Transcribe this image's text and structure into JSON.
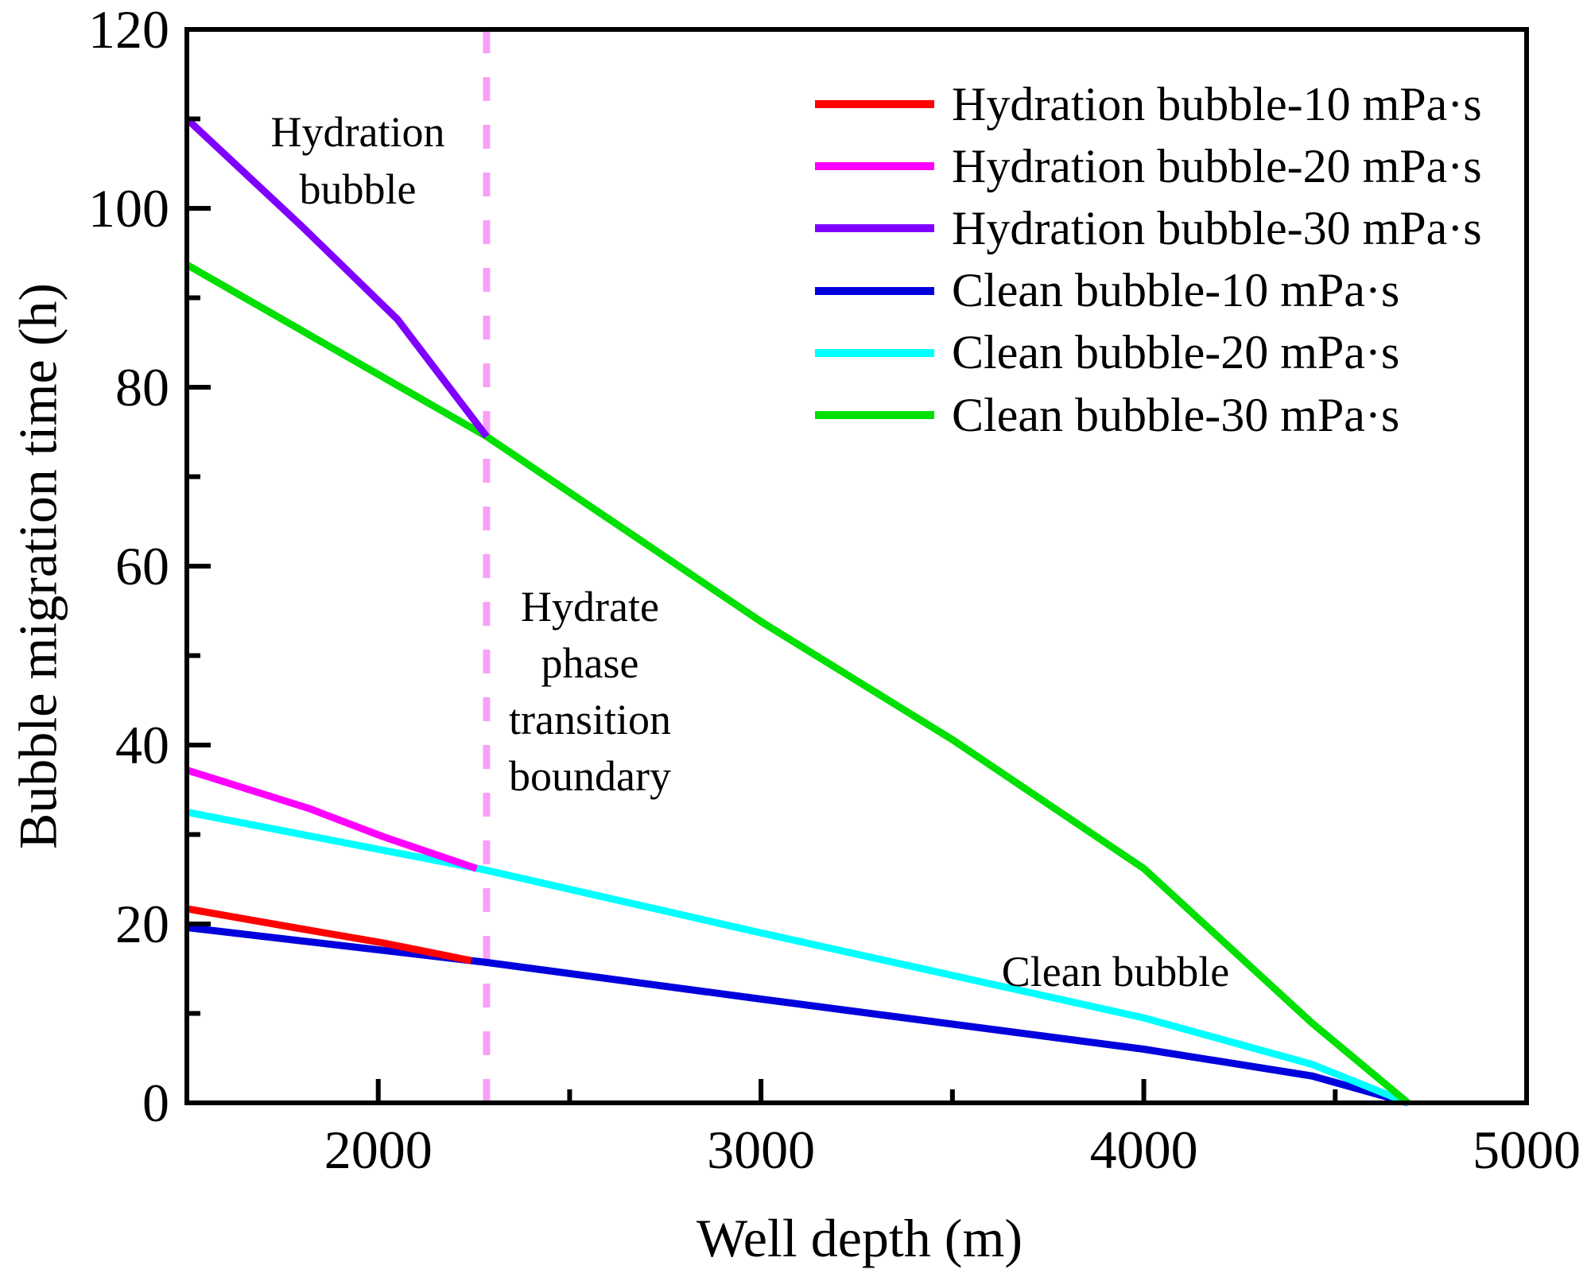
{
  "figure": {
    "background": "#FFFFFF",
    "axis_color": "#000000"
  },
  "axes": {
    "x": {
      "label": "Well depth (m)",
      "min": 1500,
      "max": 5000,
      "major_ticks": [
        2000,
        3000,
        4000,
        5000
      ],
      "minor_ticks": [
        2500,
        3500,
        4500
      ]
    },
    "y": {
      "label": "Bubble migration time (h)",
      "min": 0,
      "max": 120,
      "major_ticks": [
        0,
        20,
        40,
        60,
        80,
        100,
        120
      ],
      "minor_ticks": [
        10,
        30,
        50,
        70,
        90,
        110
      ]
    }
  },
  "annotations": {
    "hydration_bubble": {
      "line1": "Hydration",
      "line2": "bubble"
    },
    "boundary": {
      "line1": "Hydrate",
      "line2": "phase",
      "line3": "transition",
      "line4": "boundary"
    },
    "clean_bubble": {
      "text": "Clean bubble"
    }
  },
  "boundary_line": {
    "x_value": 2283,
    "color": "#F8A0F8",
    "style": "dashed"
  },
  "legend": {
    "position": "upper right",
    "items": [
      {
        "label": "Hydration bubble-10 mPa·s",
        "color": "#FF0000"
      },
      {
        "label": "Hydration bubble-20 mPa·s",
        "color": "#FF00FF"
      },
      {
        "label": "Hydration bubble-30 mPa·s",
        "color": "#8000FF"
      },
      {
        "label": "Clean bubble-10 mPa·s",
        "color": "#0000DD"
      },
      {
        "label": "Clean bubble-20 mPa·s",
        "color": "#00FFFF"
      },
      {
        "label": "Clean bubble-30 mPa·s",
        "color": "#00E000"
      }
    ]
  },
  "chart_data": {
    "type": "line",
    "title": "",
    "xlabel": "Well depth (m)",
    "ylabel": "Bubble migration time (h)",
    "xlim": [
      1500,
      5000
    ],
    "ylim": [
      0,
      120
    ],
    "grid": false,
    "legend_position": "upper right",
    "boundary_x": 2283,
    "series": [
      {
        "name": "Hydration bubble-10 mPa·s",
        "color": "#FF0000",
        "points": [
          [
            1500,
            21.7
          ],
          [
            1820,
            19.3
          ],
          [
            2010,
            17.9
          ],
          [
            2243,
            15.9
          ]
        ]
      },
      {
        "name": "Hydration bubble-20 mPa·s",
        "color": "#FF00FF",
        "points": [
          [
            1500,
            37.2
          ],
          [
            1820,
            32.9
          ],
          [
            2010,
            29.8
          ],
          [
            2257,
            26.2
          ]
        ]
      },
      {
        "name": "Hydration bubble-30 mPa·s",
        "color": "#8000FF",
        "points": [
          [
            1500,
            110
          ],
          [
            1800,
            98
          ],
          [
            2050,
            87.6
          ],
          [
            2283,
            74.5
          ]
        ]
      },
      {
        "name": "Clean bubble-10 mPa·s",
        "color": "#0000DD",
        "points": [
          [
            1500,
            19.6
          ],
          [
            2283,
            15.7
          ],
          [
            3000,
            11.6
          ],
          [
            4000,
            6.0
          ],
          [
            4440,
            3.0
          ],
          [
            4690,
            0
          ]
        ]
      },
      {
        "name": "Clean bubble-20 mPa·s",
        "color": "#00FFFF",
        "points": [
          [
            1500,
            32.5
          ],
          [
            2283,
            26.0
          ],
          [
            3000,
            19.0
          ],
          [
            4000,
            9.5
          ],
          [
            4440,
            4.3
          ],
          [
            4690,
            0
          ]
        ]
      },
      {
        "name": "Clean bubble-30 mPa·s",
        "color": "#00E000",
        "points": [
          [
            1500,
            93.7
          ],
          [
            2283,
            74.5
          ],
          [
            3000,
            53.8
          ],
          [
            3500,
            40.6
          ],
          [
            4000,
            26.2
          ],
          [
            4440,
            8.9
          ],
          [
            4690,
            0
          ]
        ]
      }
    ]
  }
}
